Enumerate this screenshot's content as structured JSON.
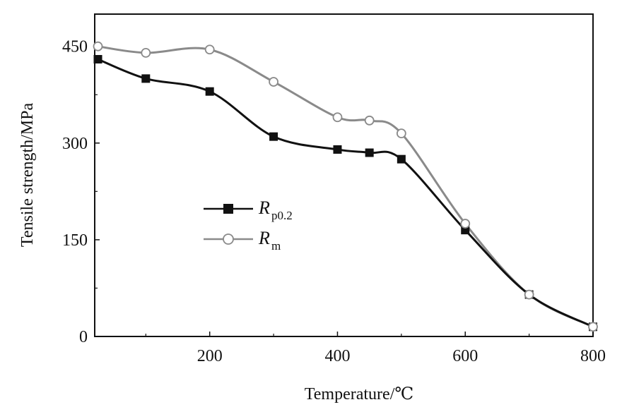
{
  "chart_data": {
    "type": "line",
    "xlabel": "Temperature/℃",
    "ylabel": "Tensile strength/MPa",
    "xlim": [
      20,
      800
    ],
    "ylim": [
      0,
      500
    ],
    "x_ticks": [
      200,
      400,
      600,
      800
    ],
    "y_ticks": [
      0,
      150,
      300,
      450
    ],
    "x_tick_labels": [
      "200",
      "400",
      "600",
      "800"
    ],
    "y_tick_labels": [
      "0",
      "150",
      "300",
      "450"
    ],
    "grid": false,
    "legend_position": "center-left",
    "series": [
      {
        "name_main": "R",
        "name_sub": "p0.2",
        "marker": "filled-square",
        "color": "#111111",
        "x": [
          25,
          100,
          200,
          300,
          400,
          450,
          500,
          600,
          700,
          800
        ],
        "y": [
          430,
          400,
          380,
          310,
          290,
          285,
          275,
          165,
          65,
          15
        ]
      },
      {
        "name_main": "R",
        "name_sub": "m",
        "marker": "open-circle",
        "color": "#8a8a8a",
        "x": [
          25,
          100,
          200,
          300,
          400,
          450,
          500,
          600,
          700,
          800
        ],
        "y": [
          450,
          440,
          445,
          395,
          340,
          335,
          315,
          175,
          65,
          15
        ]
      }
    ]
  }
}
